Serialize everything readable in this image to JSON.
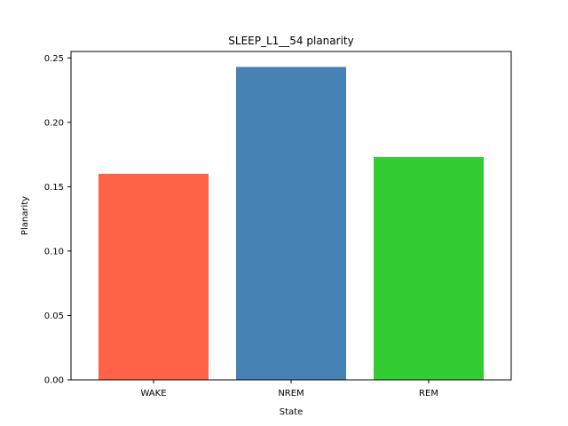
{
  "chart_data": {
    "type": "bar",
    "title": "SLEEP_L1__54 planarity",
    "xlabel": "State",
    "ylabel": "Planarity",
    "categories": [
      "WAKE",
      "NREM",
      "REM"
    ],
    "values": [
      0.16,
      0.243,
      0.173
    ],
    "colors": [
      "#ff6347",
      "#4682b4",
      "#32cd32"
    ],
    "ylim": [
      0,
      0.255
    ],
    "yticks": [
      0.0,
      0.05,
      0.1,
      0.15,
      0.2,
      0.25
    ],
    "ytick_labels": [
      "0.00",
      "0.05",
      "0.10",
      "0.15",
      "0.20",
      "0.25"
    ],
    "grid": false,
    "legend": "none"
  }
}
